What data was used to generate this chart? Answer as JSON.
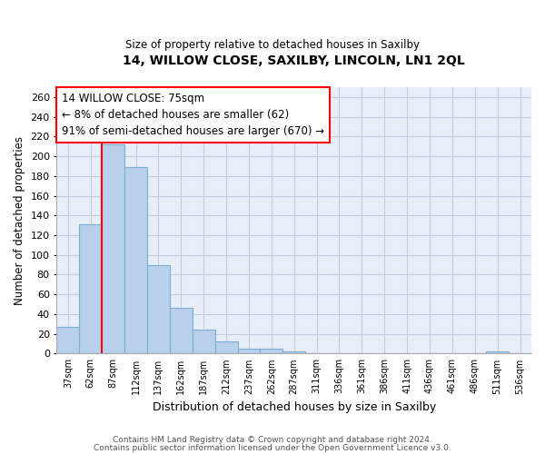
{
  "title1": "14, WILLOW CLOSE, SAXILBY, LINCOLN, LN1 2QL",
  "title2": "Size of property relative to detached houses in Saxilby",
  "xlabel": "Distribution of detached houses by size in Saxilby",
  "ylabel": "Number of detached properties",
  "categories": [
    "37sqm",
    "62sqm",
    "87sqm",
    "112sqm",
    "137sqm",
    "162sqm",
    "187sqm",
    "212sqm",
    "237sqm",
    "262sqm",
    "287sqm",
    "311sqm",
    "336sqm",
    "361sqm",
    "386sqm",
    "411sqm",
    "436sqm",
    "461sqm",
    "486sqm",
    "511sqm",
    "536sqm"
  ],
  "values": [
    27,
    131,
    212,
    189,
    90,
    46,
    24,
    12,
    5,
    5,
    2,
    0,
    0,
    0,
    0,
    0,
    0,
    0,
    0,
    2,
    0
  ],
  "bar_color": "#b8d0eb",
  "bar_edge_color": "#7aafd4",
  "vline_x": 1.5,
  "vline_color": "red",
  "ylim": [
    0,
    270
  ],
  "yticks": [
    0,
    20,
    40,
    60,
    80,
    100,
    120,
    140,
    160,
    180,
    200,
    220,
    240,
    260
  ],
  "annotation_text": "14 WILLOW CLOSE: 75sqm\n← 8% of detached houses are smaller (62)\n91% of semi-detached houses are larger (670) →",
  "annotation_box_color": "white",
  "annotation_box_edge_color": "red",
  "footer1": "Contains HM Land Registry data © Crown copyright and database right 2024.",
  "footer2": "Contains public sector information licensed under the Open Government Licence v3.0.",
  "background_color": "#e8eef8",
  "grid_color": "#c0cce0"
}
